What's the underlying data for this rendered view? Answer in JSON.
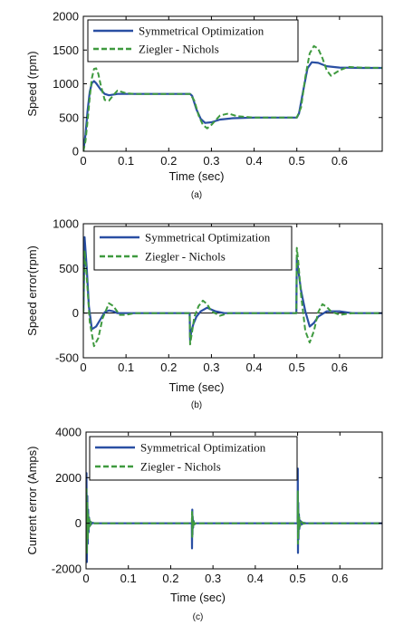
{
  "chart_data": [
    {
      "type": "line",
      "caption": "(a)",
      "xlabel": "Time (sec)",
      "ylabel": "Speed (rpm)",
      "xlim": [
        0,
        0.7
      ],
      "ylim": [
        0,
        2000
      ],
      "xticks": [
        "0",
        "0.1",
        "0.2",
        "0.3",
        "0.4",
        "0.5",
        "0.6"
      ],
      "yticks": [
        "0",
        "500",
        "1000",
        "1500",
        "2000"
      ],
      "grid": false,
      "legend_position": "top-left",
      "series": [
        {
          "name": "Symmetrical Optimization",
          "color": "#2a4fa3",
          "style": "solid",
          "x": [
            0,
            0.005,
            0.01,
            0.015,
            0.02,
            0.025,
            0.03,
            0.04,
            0.05,
            0.06,
            0.07,
            0.08,
            0.1,
            0.12,
            0.15,
            0.2,
            0.25,
            0.255,
            0.265,
            0.275,
            0.285,
            0.3,
            0.32,
            0.35,
            0.4,
            0.45,
            0.5,
            0.505,
            0.515,
            0.525,
            0.535,
            0.55,
            0.57,
            0.6,
            0.65,
            0.7
          ],
          "y": [
            0,
            250,
            600,
            880,
            1010,
            1040,
            1010,
            920,
            850,
            830,
            840,
            850,
            850,
            850,
            850,
            850,
            850,
            820,
            620,
            480,
            420,
            430,
            470,
            490,
            500,
            500,
            500,
            560,
            900,
            1230,
            1320,
            1310,
            1260,
            1240,
            1235,
            1235
          ]
        },
        {
          "name": "Ziegler - Nichols",
          "color": "#3f9a3f",
          "style": "dashed",
          "x": [
            0,
            0.005,
            0.01,
            0.015,
            0.02,
            0.025,
            0.03,
            0.035,
            0.04,
            0.05,
            0.06,
            0.07,
            0.08,
            0.09,
            0.1,
            0.12,
            0.15,
            0.2,
            0.25,
            0.26,
            0.27,
            0.28,
            0.29,
            0.3,
            0.31,
            0.32,
            0.34,
            0.36,
            0.4,
            0.45,
            0.5,
            0.51,
            0.52,
            0.53,
            0.54,
            0.55,
            0.56,
            0.57,
            0.58,
            0.6,
            0.62,
            0.65,
            0.7
          ],
          "y": [
            0,
            150,
            450,
            800,
            1080,
            1220,
            1230,
            1150,
            1000,
            760,
            750,
            830,
            900,
            880,
            860,
            850,
            850,
            850,
            850,
            750,
            530,
            390,
            340,
            390,
            460,
            530,
            560,
            520,
            500,
            500,
            500,
            650,
            1100,
            1450,
            1560,
            1520,
            1380,
            1200,
            1120,
            1200,
            1250,
            1240,
            1235
          ]
        }
      ]
    },
    {
      "type": "line",
      "caption": "(b)",
      "xlabel": "Time (sec)",
      "ylabel": "Speed error(rpm)",
      "xlim": [
        0,
        0.7
      ],
      "ylim": [
        -500,
        1000
      ],
      "xticks": [
        "0",
        "0.1",
        "0.2",
        "0.3",
        "0.4",
        "0.5",
        "0.6"
      ],
      "yticks": [
        "-500",
        "0",
        "500",
        "1000"
      ],
      "grid": false,
      "legend_position": "top",
      "series": [
        {
          "name": "Symmetrical Optimization",
          "color": "#2a4fa3",
          "style": "solid",
          "x": [
            0,
            0.003,
            0.008,
            0.013,
            0.02,
            0.03,
            0.04,
            0.05,
            0.06,
            0.07,
            0.08,
            0.1,
            0.12,
            0.15,
            0.2,
            0.249,
            0.25,
            0.253,
            0.258,
            0.265,
            0.275,
            0.29,
            0.31,
            0.33,
            0.36,
            0.4,
            0.45,
            0.499,
            0.5,
            0.503,
            0.51,
            0.52,
            0.53,
            0.54,
            0.55,
            0.57,
            0.6,
            0.63,
            0.7
          ],
          "y": [
            0,
            850,
            500,
            80,
            -180,
            -150,
            -70,
            10,
            30,
            20,
            0,
            0,
            0,
            0,
            0,
            0,
            -300,
            -200,
            -120,
            -40,
            20,
            60,
            20,
            0,
            0,
            0,
            0,
            0,
            620,
            500,
            250,
            20,
            -150,
            -110,
            -40,
            20,
            20,
            0,
            0
          ]
        },
        {
          "name": "Ziegler - Nichols",
          "color": "#3f9a3f",
          "style": "dashed",
          "x": [
            0,
            0.003,
            0.008,
            0.015,
            0.025,
            0.035,
            0.045,
            0.06,
            0.07,
            0.085,
            0.1,
            0.12,
            0.14,
            0.2,
            0.249,
            0.25,
            0.255,
            0.26,
            0.27,
            0.28,
            0.29,
            0.3,
            0.32,
            0.34,
            0.4,
            0.45,
            0.499,
            0.5,
            0.503,
            0.51,
            0.52,
            0.53,
            0.54,
            0.55,
            0.56,
            0.57,
            0.58,
            0.6,
            0.63,
            0.7
          ],
          "y": [
            0,
            700,
            400,
            -100,
            -370,
            -280,
            -60,
            110,
            80,
            -20,
            -20,
            0,
            0,
            0,
            0,
            -350,
            -200,
            -40,
            80,
            140,
            100,
            20,
            -30,
            0,
            0,
            0,
            0,
            730,
            600,
            200,
            -200,
            -330,
            -200,
            10,
            100,
            70,
            20,
            -20,
            0,
            0
          ]
        }
      ]
    },
    {
      "type": "line",
      "caption": "(c)",
      "xlabel": "Time (sec)",
      "ylabel": "Current error (Amps)",
      "xlim": [
        0,
        0.7
      ],
      "ylim": [
        -2000,
        4000
      ],
      "xticks": [
        "0",
        "0.1",
        "0.2",
        "0.3",
        "0.4",
        "0.5",
        "0.6"
      ],
      "yticks": [
        "-2000",
        "0",
        "2000",
        "4000"
      ],
      "grid": false,
      "legend_position": "top",
      "series": [
        {
          "name": "Symmetrical Optimization",
          "color": "#2a4fa3",
          "style": "solid",
          "x": [
            0,
            0.001,
            0.002,
            0.003,
            0.004,
            0.005,
            0.006,
            0.007,
            0.008,
            0.01,
            0.012,
            0.015,
            0.02,
            0.25,
            0.2505,
            0.251,
            0.2515,
            0.252,
            0.253,
            0.254,
            0.256,
            0.26,
            0.5,
            0.5005,
            0.501,
            0.5015,
            0.502,
            0.503,
            0.504,
            0.506,
            0.51,
            0.515,
            0.52,
            0.7
          ],
          "y": [
            0,
            2200,
            -1700,
            1200,
            -900,
            600,
            -400,
            250,
            -150,
            80,
            -40,
            20,
            0,
            0,
            -1100,
            600,
            -500,
            300,
            -200,
            100,
            -40,
            0,
            0,
            2400,
            -1300,
            900,
            -700,
            400,
            -250,
            120,
            -50,
            20,
            0,
            0
          ]
        },
        {
          "name": "Ziegler - Nichols",
          "color": "#3f9a3f",
          "style": "dashed",
          "x": [
            0,
            0.001,
            0.002,
            0.003,
            0.004,
            0.005,
            0.006,
            0.008,
            0.01,
            0.012,
            0.015,
            0.02,
            0.25,
            0.2505,
            0.251,
            0.2515,
            0.252,
            0.254,
            0.256,
            0.26,
            0.5,
            0.5005,
            0.501,
            0.5015,
            0.502,
            0.504,
            0.506,
            0.51,
            0.515,
            0.52,
            0.7
          ],
          "y": [
            0,
            1500,
            -1300,
            900,
            -700,
            450,
            -300,
            180,
            -100,
            50,
            -20,
            0,
            0,
            500,
            -600,
            350,
            -250,
            120,
            -50,
            0,
            0,
            1400,
            -900,
            600,
            -450,
            250,
            -120,
            60,
            -20,
            0,
            0
          ]
        }
      ]
    }
  ]
}
